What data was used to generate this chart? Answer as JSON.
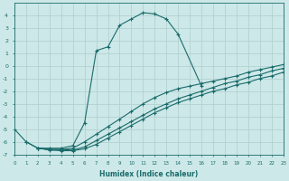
{
  "xlabel": "Humidex (Indice chaleur)",
  "xlim": [
    0,
    23
  ],
  "ylim": [
    -7,
    5
  ],
  "yticks": [
    -7,
    -6,
    -5,
    -4,
    -3,
    -2,
    -1,
    0,
    1,
    2,
    3,
    4
  ],
  "xticks": [
    0,
    1,
    2,
    3,
    4,
    5,
    6,
    7,
    8,
    9,
    10,
    11,
    12,
    13,
    14,
    15,
    16,
    17,
    18,
    19,
    20,
    21,
    22,
    23
  ],
  "bg_color": "#cde8e8",
  "grid_color": "#aecece",
  "line_color": "#1a6b6b",
  "main_curve_x": [
    0,
    1,
    2,
    3,
    4,
    5,
    6,
    7,
    8,
    9,
    10,
    11,
    12,
    13,
    14,
    16
  ],
  "main_curve_y": [
    -5.0,
    -6.0,
    -6.5,
    -6.5,
    -6.5,
    -6.3,
    -4.5,
    1.2,
    1.5,
    3.2,
    3.7,
    4.2,
    4.1,
    3.7,
    2.5,
    -1.6
  ],
  "line1_x": [
    1,
    2,
    3,
    4,
    5,
    6,
    7,
    8,
    9,
    10,
    11,
    12,
    13,
    14,
    15,
    16,
    17,
    18,
    19,
    20,
    21,
    22,
    23
  ],
  "line1_y": [
    -6.0,
    -6.5,
    -6.6,
    -6.6,
    -6.5,
    -6.0,
    -5.4,
    -4.8,
    -4.2,
    -3.6,
    -3.0,
    -2.5,
    -2.1,
    -1.8,
    -1.6,
    -1.4,
    -1.2,
    -1.0,
    -0.8,
    -0.5,
    -0.3,
    -0.1,
    0.1
  ],
  "line2_x": [
    2,
    3,
    4,
    5,
    6,
    7,
    8,
    9,
    10,
    11,
    12,
    13,
    14,
    15,
    16,
    17,
    18,
    19,
    20,
    21,
    22,
    23
  ],
  "line2_y": [
    -6.5,
    -6.6,
    -6.6,
    -6.65,
    -6.4,
    -5.9,
    -5.4,
    -4.9,
    -4.4,
    -3.9,
    -3.4,
    -3.0,
    -2.6,
    -2.3,
    -2.0,
    -1.7,
    -1.4,
    -1.2,
    -0.9,
    -0.7,
    -0.4,
    -0.2
  ],
  "line3_x": [
    2,
    3,
    4,
    5,
    6,
    7,
    8,
    9,
    10,
    11,
    12,
    13,
    14,
    15,
    16,
    17,
    18,
    19,
    20,
    21,
    22,
    23
  ],
  "line3_y": [
    -6.5,
    -6.65,
    -6.7,
    -6.7,
    -6.55,
    -6.2,
    -5.7,
    -5.2,
    -4.7,
    -4.2,
    -3.7,
    -3.3,
    -2.9,
    -2.6,
    -2.3,
    -2.0,
    -1.8,
    -1.5,
    -1.3,
    -1.0,
    -0.8,
    -0.5
  ]
}
